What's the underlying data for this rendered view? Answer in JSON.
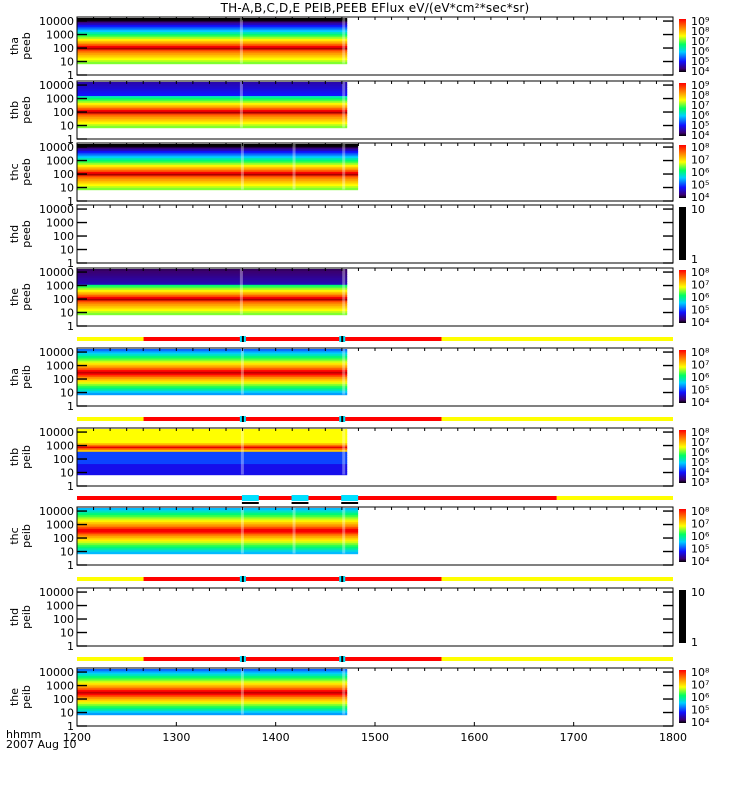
{
  "chart_data": {
    "type": "heatmap",
    "title": "TH-A,B,C,D,E PEIB,PEEB EFlux eV/(eV*cm²*sec*sr)",
    "xlabel": "hhmm",
    "date_label": "2007 Aug 10",
    "x_range": [
      1200,
      1800
    ],
    "x_ticks": [
      "1200",
      "1300",
      "1400",
      "1500",
      "1600",
      "1700",
      "1800"
    ],
    "y_scale": "log",
    "y_range": [
      1,
      20000
    ],
    "y_ticks": [
      "1",
      "10",
      "100",
      "1000",
      "10000"
    ],
    "panels": [
      {
        "probe": "tha",
        "product": "peeb",
        "data_end": 1472,
        "gaps": [
          1365,
          1468
        ],
        "colorbar": [
          "10⁴",
          "10⁵",
          "10⁶",
          "10⁷",
          "10⁸",
          "10⁹"
        ],
        "style": "electron",
        "has_mode_bar": false
      },
      {
        "probe": "thb",
        "product": "peeb",
        "data_end": 1472,
        "gaps": [
          1365,
          1468
        ],
        "colorbar": [
          "10⁴",
          "10⁵",
          "10⁶",
          "10⁷",
          "10⁸",
          "10⁹"
        ],
        "style": "electron_b",
        "has_mode_bar": false
      },
      {
        "probe": "thc",
        "product": "peeb",
        "data_end": 1483,
        "gaps": [
          1366,
          1418,
          1468
        ],
        "colorbar": [
          "10⁴",
          "10⁵",
          "10⁶",
          "10⁷",
          "10⁸"
        ],
        "style": "electron",
        "has_mode_bar": false
      },
      {
        "probe": "thd",
        "product": "peeb",
        "data_end": null,
        "gaps": [],
        "colorbar": [
          "1",
          "10"
        ],
        "style": "empty",
        "has_mode_bar": false
      },
      {
        "probe": "the",
        "product": "peeb",
        "data_end": 1472,
        "gaps": [
          1365,
          1468
        ],
        "colorbar": [
          "10⁴",
          "10⁵",
          "10⁶",
          "10⁷",
          "10⁸"
        ],
        "style": "electron_e",
        "has_mode_bar": false
      },
      {
        "probe": "tha",
        "product": "peib",
        "data_end": 1472,
        "gaps": [
          1366,
          1468
        ],
        "colorbar": [
          "10⁴",
          "10⁵",
          "10⁶",
          "10⁷",
          "10⁸"
        ],
        "style": "ion",
        "has_mode_bar": true,
        "mode_bar": {
          "segments": [
            {
              "from": 1200,
              "to": 1267,
              "color": "yellow"
            },
            {
              "from": 1267,
              "to": 1567,
              "color": "red"
            },
            {
              "from": 1567,
              "to": 1800,
              "color": "yellow"
            }
          ],
          "cyan_marks": [
            1367,
            1467
          ]
        }
      },
      {
        "probe": "thb",
        "product": "peib",
        "data_end": 1472,
        "gaps": [
          1366,
          1468
        ],
        "colorbar": [
          "10³",
          "10⁴",
          "10⁵",
          "10⁶",
          "10⁷",
          "10⁸"
        ],
        "style": "ion_b",
        "has_mode_bar": true,
        "mode_bar": {
          "segments": [
            {
              "from": 1200,
              "to": 1267,
              "color": "yellow"
            },
            {
              "from": 1267,
              "to": 1567,
              "color": "red"
            },
            {
              "from": 1567,
              "to": 1800,
              "color": "yellow"
            }
          ],
          "cyan_marks": [
            1367,
            1467
          ]
        }
      },
      {
        "probe": "thc",
        "product": "peib",
        "data_end": 1483,
        "gaps": [
          1366,
          1418,
          1468
        ],
        "colorbar": [
          "10⁴",
          "10⁵",
          "10⁶",
          "10⁷",
          "10⁸"
        ],
        "style": "ion_c",
        "has_mode_bar": true,
        "mode_bar": {
          "segments": [
            {
              "from": 1200,
              "to": 1683,
              "color": "red"
            },
            {
              "from": 1683,
              "to": 1800,
              "color": "yellow"
            }
          ],
          "cyan_wide": [
            [
              1366,
              1383
            ],
            [
              1416,
              1433
            ],
            [
              1466,
              1483
            ]
          ]
        }
      },
      {
        "probe": "thd",
        "product": "peib",
        "data_end": null,
        "gaps": [],
        "colorbar": [
          "1",
          "10"
        ],
        "style": "empty",
        "has_mode_bar": true,
        "mode_bar": {
          "segments": [
            {
              "from": 1200,
              "to": 1267,
              "color": "yellow"
            },
            {
              "from": 1267,
              "to": 1567,
              "color": "red"
            },
            {
              "from": 1567,
              "to": 1800,
              "color": "yellow"
            }
          ],
          "cyan_marks": [
            1367,
            1467
          ]
        }
      },
      {
        "probe": "the",
        "product": "peib",
        "data_end": 1472,
        "gaps": [
          1366,
          1468
        ],
        "colorbar": [
          "10⁴",
          "10⁵",
          "10⁶",
          "10⁷",
          "10⁸"
        ],
        "style": "ion",
        "has_mode_bar": true,
        "mode_bar": {
          "segments": [
            {
              "from": 1200,
              "to": 1267,
              "color": "yellow"
            },
            {
              "from": 1267,
              "to": 1567,
              "color": "red"
            },
            {
              "from": 1567,
              "to": 1800,
              "color": "yellow"
            }
          ],
          "cyan_marks": [
            1367,
            1467
          ]
        }
      }
    ]
  },
  "colors": {
    "yellow": "#ffff00",
    "red": "#ff0000",
    "cyan": "#00e0ff"
  }
}
